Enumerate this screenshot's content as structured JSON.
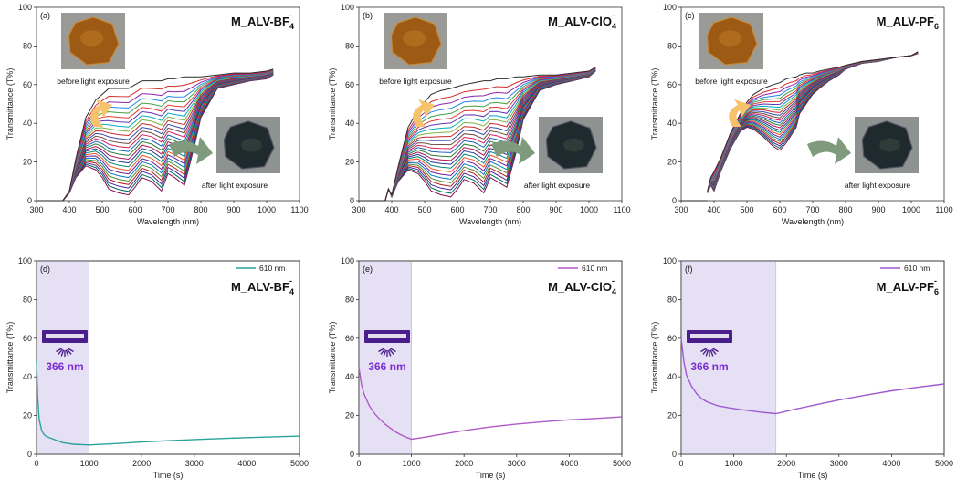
{
  "colors": {
    "spectra": [
      "#2b2b2b",
      "#d32f2f",
      "#8e24aa",
      "#1e88e5",
      "#43a047",
      "#e53935",
      "#5e35b1",
      "#00acc1",
      "#7cb342",
      "#c62828",
      "#3949ab",
      "#6d4c41",
      "#d81b60",
      "#1565c0",
      "#2e7d32",
      "#ad1457",
      "#283593",
      "#00897b",
      "#f4511e",
      "#6a1b9a",
      "#0277bd",
      "#558b2f",
      "#b71c1c",
      "#4527a0",
      "#00695c",
      "#880e4f"
    ],
    "teal": "#2aa39a",
    "purple": "#b05ac8",
    "violet": "#a05ad0",
    "shade": "#e6e0f5",
    "lamp": "#4a1f8c",
    "arrow_up": "#f6c26b",
    "arrow_down": "#7f9a7c"
  },
  "icons": [
    "sample-photo",
    "lamp-icon",
    "curved-arrow-icon"
  ],
  "chart_data": [
    {
      "type": "line",
      "panel_label": "(a)",
      "title_main": "M_ALV-BF",
      "title_sub": "4",
      "title_sup": "-",
      "xlabel": "Wavelength (nm)",
      "ylabel": "Transmittance (T%)",
      "xlim": [
        300,
        1100
      ],
      "ylim": [
        0,
        100
      ],
      "xticks": [
        "300",
        "400",
        "500",
        "600",
        "700",
        "800",
        "900",
        "1000",
        "1100"
      ],
      "yticks": [
        "0",
        "20",
        "40",
        "60",
        "80",
        "100"
      ],
      "before_label": "before light exposure",
      "after_label": "after light exposure",
      "x": [
        380,
        400,
        420,
        450,
        480,
        500,
        520,
        550,
        580,
        600,
        620,
        650,
        680,
        700,
        720,
        750,
        780,
        800,
        850,
        900,
        950,
        1000,
        1020
      ],
      "first_curve": [
        0,
        5,
        22,
        43,
        52,
        55,
        58,
        58,
        58,
        60,
        62,
        62,
        62,
        63,
        63,
        64,
        64,
        64,
        65,
        66,
        66,
        67,
        68
      ],
      "last_curve": [
        0,
        4,
        12,
        18,
        16,
        12,
        6,
        4,
        3,
        7,
        12,
        10,
        5,
        14,
        12,
        8,
        28,
        43,
        58,
        60,
        62,
        63,
        65
      ],
      "n_curves": 26
    },
    {
      "type": "line",
      "panel_label": "(b)",
      "title_main": "M_ALV-ClO",
      "title_sub": "4",
      "title_sup": "-",
      "xlabel": "Wavelength (nm)",
      "ylabel": "Transmittance (T%)",
      "xlim": [
        300,
        1100
      ],
      "ylim": [
        0,
        100
      ],
      "xticks": [
        "300",
        "400",
        "500",
        "600",
        "700",
        "800",
        "900",
        "1000",
        "1100"
      ],
      "yticks": [
        "0",
        "20",
        "40",
        "60",
        "80",
        "100"
      ],
      "before_label": "before light exposure",
      "after_label": "after light exposure",
      "x": [
        380,
        390,
        400,
        420,
        450,
        480,
        500,
        520,
        550,
        580,
        600,
        620,
        650,
        680,
        700,
        720,
        750,
        780,
        800,
        850,
        900,
        950,
        1000,
        1020
      ],
      "first_curve": [
        0,
        6,
        3,
        18,
        38,
        47,
        51,
        55,
        57,
        58,
        59,
        60,
        61,
        62,
        62,
        63,
        63,
        64,
        64,
        65,
        65,
        66,
        67,
        69
      ],
      "last_curve": [
        0,
        6,
        2,
        10,
        16,
        14,
        10,
        5,
        3,
        2,
        6,
        11,
        9,
        4,
        12,
        10,
        7,
        26,
        42,
        57,
        60,
        62,
        64,
        67
      ],
      "n_curves": 26
    },
    {
      "type": "line",
      "panel_label": "(c)",
      "title_main": "M_ALV-PF",
      "title_sub": "6",
      "title_sup": "-",
      "xlabel": "Wavelength (nm)",
      "ylabel": "Transmittance (T%)",
      "xlim": [
        300,
        1100
      ],
      "ylim": [
        0,
        100
      ],
      "xticks": [
        "300",
        "400",
        "500",
        "600",
        "700",
        "800",
        "900",
        "1000",
        "1100"
      ],
      "yticks": [
        "0",
        "20",
        "40",
        "60",
        "80",
        "100"
      ],
      "before_label": "before light exposure",
      "after_label": "after light exposure",
      "x": [
        380,
        390,
        400,
        420,
        450,
        480,
        500,
        520,
        550,
        580,
        600,
        620,
        650,
        660,
        680,
        700,
        720,
        750,
        780,
        800,
        850,
        900,
        950,
        1000,
        1020
      ],
      "first_curve": [
        5,
        12,
        15,
        22,
        35,
        45,
        51,
        55,
        58,
        60,
        61,
        63,
        64,
        65,
        66,
        66,
        67,
        68,
        69,
        70,
        72,
        73,
        74,
        75,
        77
      ],
      "last_curve": [
        4,
        8,
        5,
        15,
        27,
        36,
        38,
        37,
        33,
        28,
        26,
        30,
        38,
        45,
        50,
        55,
        58,
        62,
        65,
        68,
        71,
        72,
        74,
        75,
        76
      ],
      "n_curves": 26
    },
    {
      "type": "line",
      "panel_label": "(d)",
      "title_main": "M_ALV-BF",
      "title_sub": "4",
      "title_sup": "-",
      "xlabel": "Time (s)",
      "ylabel": "Transmittance (T%)",
      "xlim": [
        0,
        5000
      ],
      "ylim": [
        0,
        100
      ],
      "xticks": [
        "0",
        "1000",
        "2000",
        "3000",
        "4000",
        "5000"
      ],
      "yticks": [
        "0",
        "20",
        "40",
        "60",
        "80",
        "100"
      ],
      "legend": "610 nm",
      "lamp_label": "366 nm",
      "irradiation_end": 1000,
      "series": [
        {
          "name": "610 nm",
          "x": [
            0,
            20,
            50,
            100,
            150,
            200,
            300,
            400,
            500,
            700,
            1000,
            1500,
            2000,
            2500,
            3000,
            3500,
            4000,
            4500,
            5000
          ],
          "values": [
            48,
            30,
            18,
            12,
            10,
            9,
            8,
            7,
            6,
            5.2,
            4.8,
            5.5,
            6.3,
            7,
            7.6,
            8.1,
            8.6,
            9,
            9.4
          ]
        }
      ]
    },
    {
      "type": "line",
      "panel_label": "(e)",
      "title_main": "M_ALV-ClO",
      "title_sub": "4",
      "title_sup": "-",
      "xlabel": "Time (s)",
      "ylabel": "Transmittance (T%)",
      "xlim": [
        0,
        5000
      ],
      "ylim": [
        0,
        100
      ],
      "xticks": [
        "0",
        "1000",
        "2000",
        "3000",
        "4000",
        "5000"
      ],
      "yticks": [
        "0",
        "20",
        "40",
        "60",
        "80",
        "100"
      ],
      "legend": "610 nm",
      "lamp_label": "366 nm",
      "irradiation_end": 1000,
      "series": [
        {
          "name": "610 nm",
          "x": [
            0,
            50,
            100,
            200,
            300,
            400,
            500,
            600,
            700,
            800,
            900,
            1000,
            1200,
            1500,
            2000,
            2500,
            3000,
            3500,
            4000,
            4500,
            5000
          ],
          "values": [
            45,
            36,
            31,
            25,
            21,
            18,
            15.5,
            13.5,
            11.5,
            10,
            8.8,
            7.8,
            8.6,
            10,
            12.2,
            14.1,
            15.6,
            16.8,
            17.8,
            18.5,
            19.3
          ]
        }
      ]
    },
    {
      "type": "line",
      "panel_label": "(f)",
      "title_main": "M_ALV-PF",
      "title_sub": "6",
      "title_sup": "-",
      "xlabel": "Time (s)",
      "ylabel": "Transmittance (T%)",
      "xlim": [
        0,
        5000
      ],
      "ylim": [
        0,
        100
      ],
      "xticks": [
        "0",
        "1000",
        "2000",
        "3000",
        "4000",
        "5000"
      ],
      "yticks": [
        "0",
        "20",
        "40",
        "60",
        "80",
        "100"
      ],
      "legend": "610 nm",
      "lamp_label": "366 nm",
      "irradiation_end": 1800,
      "series": [
        {
          "name": "610 nm",
          "x": [
            0,
            50,
            100,
            200,
            300,
            400,
            500,
            700,
            900,
            1100,
            1300,
            1500,
            1800,
            2200,
            2600,
            3000,
            3500,
            4000,
            4500,
            5000
          ],
          "values": [
            60,
            48,
            41,
            35,
            31,
            28.5,
            27,
            25,
            24,
            23.2,
            22.5,
            21.8,
            21,
            23.5,
            25.8,
            28,
            30.5,
            32.8,
            34.6,
            36.3
          ]
        }
      ]
    }
  ]
}
